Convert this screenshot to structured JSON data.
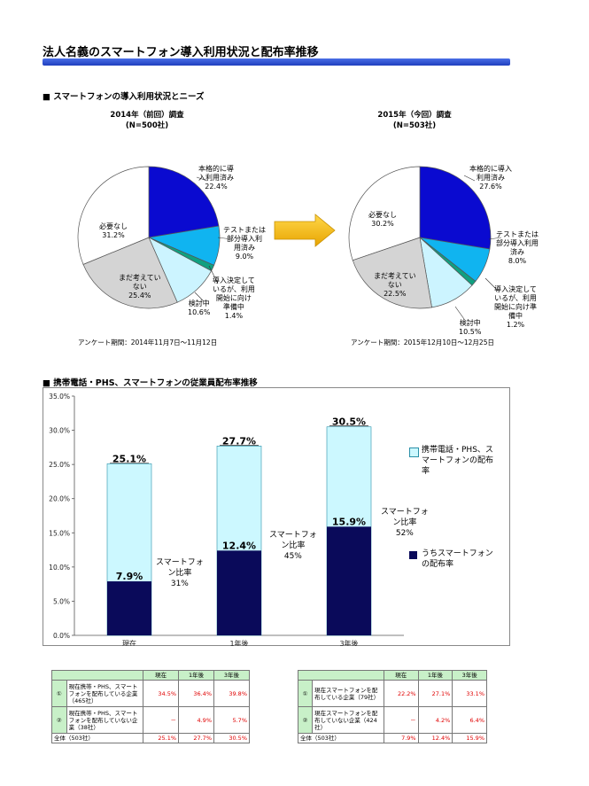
{
  "page_title": "法人名義のスマートフォン導入利用状況と配布率推移",
  "section1_title": "■ スマートフォンの導入利用状況とニーズ",
  "section2_title": "■ 携帯電話・PHS、スマートフォンの従業員配布率推移",
  "pie_charts": [
    {
      "title_line1": "2014年（前回）調査",
      "title_line2": "(N=500社)",
      "survey_period": "アンケート期間：2014年11月7日～11月12日",
      "labels": [
        [
          "本格的に導",
          "入利用済み",
          "22.4%"
        ],
        [
          "テストまたは",
          "部分導入利",
          "用済み",
          "9.0%"
        ],
        [
          "導入決定して",
          "いるが、利用",
          "開始に向け",
          "準備中",
          "1.4%"
        ],
        [
          "検討中",
          "10.6%"
        ],
        [
          "まだ考えてい",
          "ない",
          "25.4%"
        ],
        [
          "必要なし",
          "31.2%"
        ]
      ]
    },
    {
      "title_line1": "2015年（今回）調査",
      "title_line2": "(N=503社)",
      "survey_period": "アンケート期間：2015年12月10日～12月25日",
      "labels": [
        [
          "本格的に導入",
          "利用済み",
          "27.6%"
        ],
        [
          "テストまたは",
          "部分導入利用",
          "済み",
          "8.0%"
        ],
        [
          "導入決定して",
          "いるが、利用",
          "開始に向け準",
          "備中",
          "1.2%"
        ],
        [
          "検討中",
          "10.5%"
        ],
        [
          "まだ考えてい",
          "ない",
          "22.5%"
        ],
        [
          "必要なし",
          "30.2%"
        ]
      ]
    }
  ],
  "bar_annotations": [
    [
      "スマートフォ",
      "ン比率",
      "31%"
    ],
    [
      "スマートフォ",
      "ン比率",
      "45%"
    ],
    [
      "スマートフォ",
      "ン比率",
      "52%"
    ]
  ],
  "legend": {
    "total": [
      "携帯電話・PHS、ス",
      "マートフォンの配布",
      "率"
    ],
    "smart": [
      "うちスマートフォン",
      "の配布率"
    ]
  },
  "table1": {
    "headers": [
      "",
      "",
      "現在",
      "1年後",
      "3年後"
    ],
    "rows": [
      {
        "no": "①",
        "desc": "現在携帯・PHS、スマートフォンを配布している企業（465社）",
        "values": [
          "34.5%",
          "36.4%",
          "39.8%"
        ],
        "red": true
      },
      {
        "no": "②",
        "desc": "現在携帯・PHS、スマートフォンを配布していない企業（38社）",
        "values": [
          "－",
          "4.9%",
          "5.7%"
        ],
        "red": true
      },
      {
        "no": "",
        "desc": "全体（503社）",
        "values": [
          "25.1%",
          "27.7%",
          "30.5%"
        ],
        "red": true
      }
    ]
  },
  "table2": {
    "headers": [
      "",
      "",
      "現在",
      "1年後",
      "3年後"
    ],
    "rows": [
      {
        "no": "①",
        "desc": "現在スマートフォンを配布している企業（79社）",
        "values": [
          "22.2%",
          "27.1%",
          "33.1%"
        ],
        "red": true
      },
      {
        "no": "②",
        "desc": "現在スマートフォンを配布していない企業（424社）",
        "values": [
          "－",
          "4.2%",
          "6.4%"
        ],
        "red": true
      },
      {
        "no": "",
        "desc": "全体（503社）",
        "values": [
          "7.9%",
          "12.4%",
          "15.9%"
        ],
        "red": true
      }
    ]
  },
  "colors": {
    "full": "#0a0ad0",
    "test": "#10b4f0",
    "decided": "#10a080",
    "considering": "#ccf4ff",
    "not_yet": "#d4d4d4",
    "unneeded": "#ffffff",
    "bar_total": "#ccf8ff",
    "bar_smart": "#0a0a5a",
    "arrow": "#f5b800"
  },
  "chart_data": [
    {
      "type": "pie",
      "title": "2014年（前回）調査",
      "categories": [
        "本格的に導入利用済み",
        "テストまたは部分導入利用済み",
        "導入決定しているが、利用開始に向け準備中",
        "検討中",
        "まだ考えていない",
        "必要なし"
      ],
      "values": [
        22.4,
        9.0,
        1.4,
        10.6,
        25.4,
        31.2
      ]
    },
    {
      "type": "pie",
      "title": "2015年（今回）調査",
      "categories": [
        "本格的に導入利用済み",
        "テストまたは部分導入利用済み",
        "導入決定しているが、利用開始に向け準備中",
        "検討中",
        "まだ考えていない",
        "必要なし"
      ],
      "values": [
        27.6,
        8.0,
        1.2,
        10.5,
        22.5,
        30.2
      ]
    },
    {
      "type": "bar",
      "categories": [
        "現在",
        "1年後",
        "3年後"
      ],
      "series": [
        {
          "name": "携帯電話・PHS、スマートフォンの配布率",
          "values": [
            25.1,
            27.7,
            30.5
          ]
        },
        {
          "name": "うちスマートフォンの配布率",
          "values": [
            7.9,
            12.4,
            15.9
          ]
        }
      ],
      "data_labels_total": [
        "25.1%",
        "27.7%",
        "30.5%"
      ],
      "data_labels_smart": [
        "7.9%",
        "12.4%",
        "15.9%"
      ],
      "y_ticks": [
        "0.0%",
        "5.0%",
        "10.0%",
        "15.0%",
        "20.0%",
        "25.0%",
        "30.0%",
        "35.0%"
      ],
      "ylim": [
        0,
        35
      ],
      "legend_position": "right"
    }
  ]
}
